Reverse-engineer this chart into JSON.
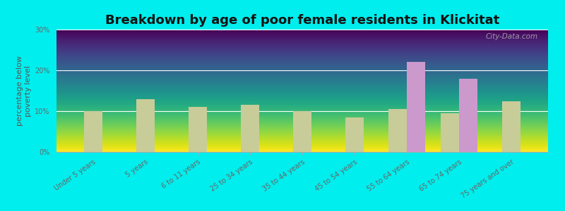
{
  "title": "Breakdown by age of poor female residents in Klickitat",
  "ylabel": "percentage below\npoverty level",
  "categories": [
    "Under 5 years",
    "5 years",
    "6 to 11 years",
    "25 to 34 years",
    "35 to 44 years",
    "45 to 54 years",
    "55 to 64 years",
    "65 to 74 years",
    "75 years and over"
  ],
  "klickitat": [
    0,
    0,
    0,
    0,
    0,
    0,
    22,
    18,
    0
  ],
  "washington": [
    10,
    13,
    11,
    11.5,
    10,
    8.5,
    10.5,
    9.5,
    12.5
  ],
  "klickitat_color": "#cc99cc",
  "washington_color": "#c8cc99",
  "background_color": "#00eeee",
  "plot_bg_top": "#d8ead8",
  "plot_bg_bottom": "#f8f8f0",
  "bar_width": 0.35,
  "ylim": [
    0,
    30
  ],
  "yticks": [
    0,
    10,
    20,
    30
  ],
  "ytick_labels": [
    "0%",
    "10%",
    "20%",
    "30%"
  ],
  "title_fontsize": 13,
  "axis_label_fontsize": 8,
  "tick_fontsize": 7,
  "legend_fontsize": 9,
  "watermark": "City-Data.com"
}
